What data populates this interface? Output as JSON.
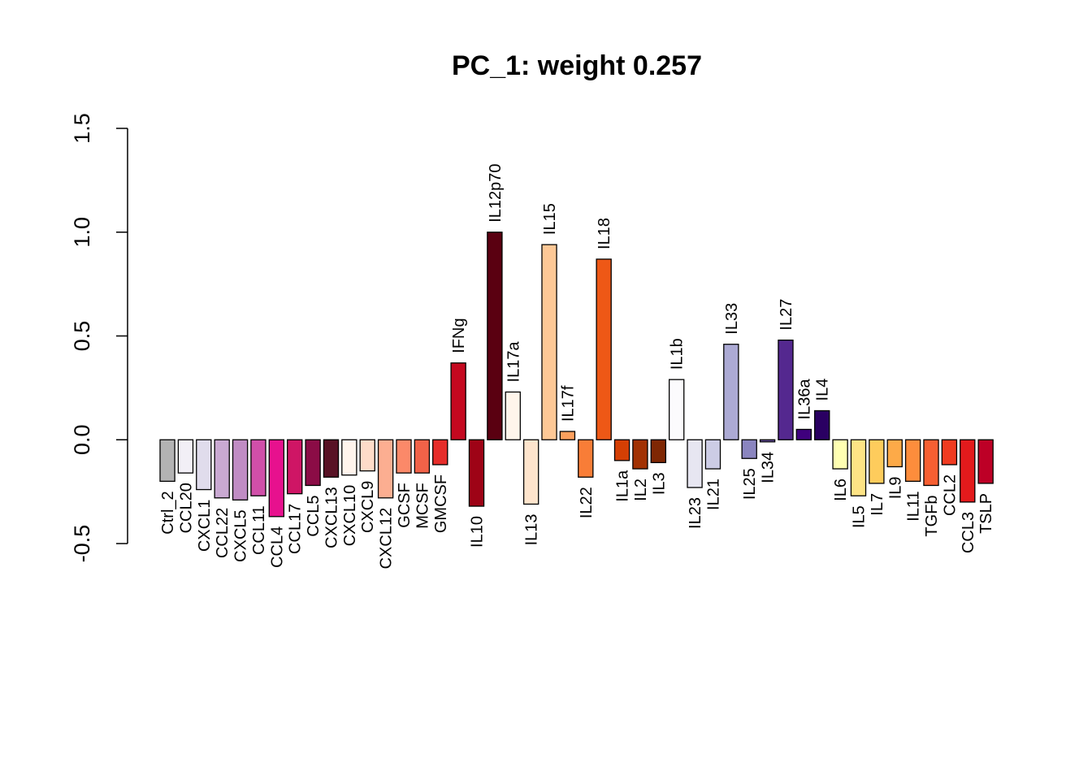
{
  "chart_data": {
    "type": "bar",
    "title": "PC_1: weight 0.257",
    "xlabel": "",
    "ylabel": "",
    "ylim": [
      -0.5,
      1.5
    ],
    "yticks": [
      "-0.5",
      "0.0",
      "0.5",
      "1.0",
      "1.5"
    ],
    "ytick_values": [
      -0.5,
      0.0,
      0.5,
      1.0,
      1.5
    ],
    "grid": false,
    "legend": "none",
    "categories": [
      "Ctrl_2",
      "CCL20",
      "CXCL1",
      "CCL22",
      "CXCL5",
      "CCL11",
      "CCL4",
      "CCL17",
      "CCL5",
      "CXCL13",
      "CXCL10",
      "CXCL9",
      "CXCL12",
      "GCSF",
      "MCSF",
      "GMCSF",
      "IFNg",
      "IL10",
      "IL12p70",
      "IL17a",
      "IL13",
      "IL15",
      "IL17f",
      "IL22",
      "IL18",
      "IL1a",
      "IL2",
      "IL3",
      "IL1b",
      "IL23",
      "IL21",
      "IL33",
      "IL25",
      "IL34",
      "IL27",
      "IL36a",
      "IL4",
      "IL6",
      "IL5",
      "IL7",
      "IL9",
      "IL11",
      "TGFb",
      "CCL2",
      "CCL3",
      "TSLP"
    ],
    "values": [
      -0.2,
      -0.16,
      -0.24,
      -0.28,
      -0.29,
      -0.27,
      -0.37,
      -0.26,
      -0.22,
      -0.18,
      -0.17,
      -0.15,
      -0.28,
      -0.16,
      -0.16,
      -0.12,
      0.37,
      -0.32,
      1.0,
      0.23,
      -0.31,
      0.94,
      0.04,
      -0.18,
      0.87,
      -0.1,
      -0.14,
      -0.11,
      0.29,
      -0.23,
      -0.14,
      0.46,
      -0.09,
      -0.01,
      0.48,
      0.05,
      0.14,
      -0.14,
      -0.27,
      -0.21,
      -0.13,
      -0.2,
      -0.22,
      -0.12,
      -0.3,
      -0.21
    ],
    "colors": [
      "#B3B3B3",
      "#F2EFF6",
      "#E0DCEC",
      "#C9A9D2",
      "#C08CC4",
      "#D04FA9",
      "#E7118E",
      "#CF1565",
      "#8B0C46",
      "#581225",
      "#FFF4EC",
      "#FEDCC9",
      "#FCAE91",
      "#FB8969",
      "#F16248",
      "#E62D2A",
      "#C4081F",
      "#9E0316",
      "#5A0011",
      "#FFF5EB",
      "#FEE4CC",
      "#FDC896",
      "#FDA05D",
      "#F87D37",
      "#EE5816",
      "#D43F04",
      "#A23103",
      "#7F2704",
      "#FCFBFD",
      "#E7E6F1",
      "#CCCCE5",
      "#ACAAD4",
      "#8A85BF",
      "#6A53A4",
      "#54288F",
      "#3F007D",
      "#2A0062",
      "#FFFFB2",
      "#FEE485",
      "#FECC5C",
      "#FDAA48",
      "#FD8D3C",
      "#F75F32",
      "#F03B20",
      "#E31A1C",
      "#BD0026"
    ]
  }
}
